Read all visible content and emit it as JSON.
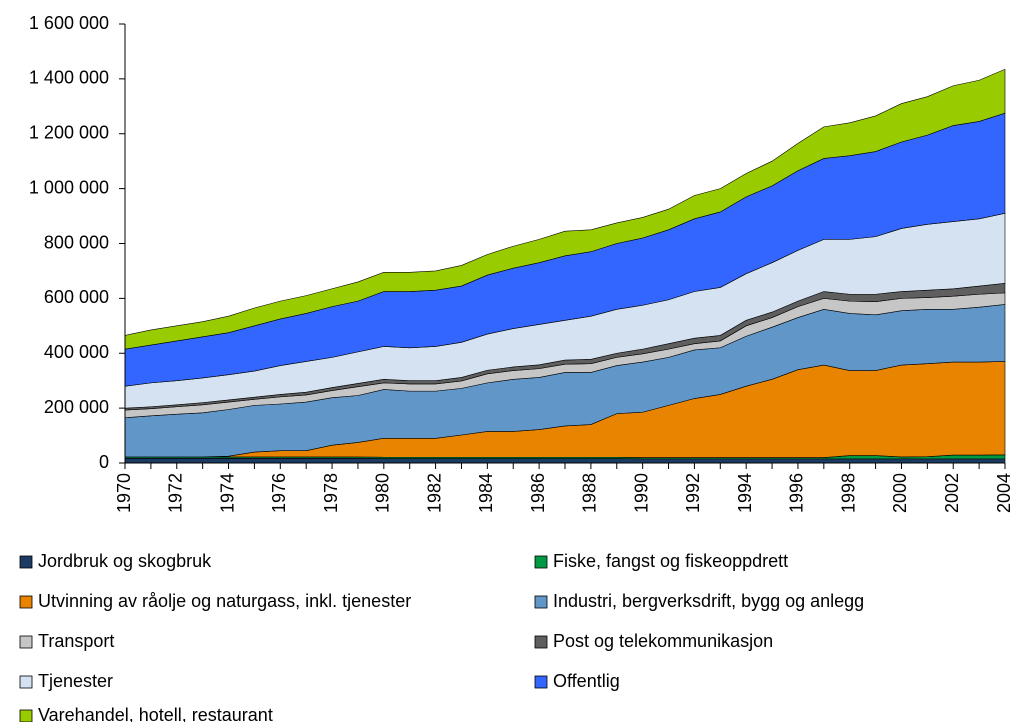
{
  "chart_data": {
    "type": "stacked_area",
    "x": [
      1970,
      1971,
      1972,
      1973,
      1974,
      1975,
      1976,
      1977,
      1978,
      1979,
      1980,
      1981,
      1982,
      1983,
      1984,
      1985,
      1986,
      1987,
      1988,
      1989,
      1990,
      1991,
      1992,
      1993,
      1994,
      1995,
      1996,
      1997,
      1998,
      1999,
      2000,
      2001,
      2002,
      2003,
      2004
    ],
    "xlim": [
      1970,
      2004
    ],
    "xticks": [
      1970,
      1972,
      1974,
      1976,
      1978,
      1980,
      1982,
      1984,
      1986,
      1988,
      1990,
      1992,
      1994,
      1996,
      1998,
      2000,
      2002,
      2004
    ],
    "ylim": [
      0,
      1600000
    ],
    "yticks": [
      0,
      {
        "value": 200000,
        "label": "200 000"
      },
      {
        "value": 400000,
        "label": "400 000"
      },
      {
        "value": 600000,
        "label": "600 000"
      },
      {
        "value": 800000,
        "label": "800 000"
      },
      {
        "value": 1000000,
        "label": "1 000 000"
      },
      {
        "value": 1200000,
        "label": "1 200 000"
      },
      {
        "value": 1400000,
        "label": "1 400 000"
      },
      {
        "value": 1600000,
        "label": "1 600 000"
      }
    ],
    "series": [
      {
        "name": "Jordbruk og skogbruk",
        "color": "#1c3b63",
        "values": [
          17000,
          17000,
          17000,
          17000,
          17000,
          17000,
          17000,
          17000,
          17000,
          17000,
          16000,
          16000,
          16000,
          16000,
          16000,
          16000,
          16000,
          16000,
          16000,
          16000,
          15000,
          15000,
          15000,
          15000,
          15000,
          15000,
          15000,
          15000,
          15000,
          15000,
          15000,
          15000,
          15000,
          15000,
          15000
        ]
      },
      {
        "name": "Fiske, fangst og fiskeoppdrett",
        "color": "#009a44",
        "values": [
          5000,
          5000,
          5000,
          5000,
          5000,
          5000,
          5000,
          5000,
          5000,
          5000,
          5000,
          5000,
          5000,
          5000,
          5000,
          5000,
          5000,
          5000,
          5000,
          5000,
          5000,
          5000,
          5000,
          5000,
          5000,
          5000,
          5000,
          5000,
          12000,
          12000,
          7000,
          8000,
          14000,
          14000,
          15000
        ]
      },
      {
        "name": "Utvinning av råolje og naturgass, inkl. tjenester",
        "color": "#e88400",
        "values": [
          0,
          0,
          0,
          0,
          3000,
          18000,
          23000,
          23000,
          43000,
          53000,
          69000,
          69000,
          69000,
          81000,
          94000,
          94000,
          101000,
          114000,
          119000,
          159000,
          165000,
          190000,
          215000,
          230000,
          260000,
          285000,
          320000,
          337000,
          310000,
          310000,
          335000,
          339000,
          339000,
          339000,
          340000
        ]
      },
      {
        "name": "Industri, bergverksdrift, bygg og anlegg",
        "color": "#6096c8",
        "values": [
          143000,
          150000,
          156000,
          161000,
          170000,
          170000,
          170000,
          177000,
          173000,
          171000,
          178000,
          172000,
          172000,
          170000,
          177000,
          190000,
          190000,
          195000,
          190000,
          175000,
          183000,
          175000,
          177000,
          170000,
          182000,
          190000,
          190000,
          203000,
          208000,
          203000,
          198000,
          198000,
          192000,
          200000,
          208000
        ]
      },
      {
        "name": "Transport",
        "color": "#c6c6c6",
        "values": [
          28000,
          26000,
          27000,
          29000,
          27000,
          22000,
          26000,
          26000,
          26000,
          32000,
          24000,
          26000,
          26000,
          27000,
          33000,
          32000,
          32000,
          30000,
          32000,
          30000,
          30000,
          30000,
          23000,
          25000,
          38000,
          35000,
          40000,
          40000,
          45000,
          48000,
          45000,
          43000,
          48000,
          47000,
          42000
        ]
      },
      {
        "name": "Post og telekommunikasjon",
        "color": "#5f5f5f",
        "values": [
          7000,
          7000,
          7000,
          8000,
          8000,
          8000,
          9000,
          10000,
          11000,
          12000,
          13000,
          12000,
          12000,
          13000,
          13000,
          13000,
          14000,
          15000,
          16000,
          15000,
          17000,
          20000,
          20000,
          20000,
          20000,
          20000,
          20000,
          25000,
          25000,
          27000,
          25000,
          27000,
          27000,
          30000,
          35000
        ]
      },
      {
        "name": "Tjenester",
        "color": "#d4e2f2",
        "values": [
          80000,
          87000,
          88000,
          90000,
          92000,
          95000,
          105000,
          112000,
          110000,
          115000,
          120000,
          120000,
          125000,
          128000,
          132000,
          140000,
          147000,
          145000,
          157000,
          160000,
          160000,
          160000,
          170000,
          175000,
          170000,
          180000,
          185000,
          190000,
          200000,
          210000,
          230000,
          240000,
          245000,
          245000,
          255000
        ]
      },
      {
        "name": "Offentlig",
        "color": "#3366ff",
        "values": [
          135000,
          138000,
          145000,
          150000,
          153000,
          165000,
          170000,
          175000,
          185000,
          185000,
          200000,
          205000,
          205000,
          205000,
          215000,
          220000,
          225000,
          235000,
          235000,
          240000,
          245000,
          255000,
          265000,
          275000,
          280000,
          280000,
          290000,
          295000,
          305000,
          310000,
          315000,
          325000,
          350000,
          355000,
          365000
        ]
      },
      {
        "name": "Varehandel, hotell, restaurant",
        "color": "#99cc00",
        "values": [
          50000,
          55000,
          55000,
          55000,
          60000,
          65000,
          65000,
          65000,
          65000,
          70000,
          70000,
          70000,
          70000,
          75000,
          75000,
          80000,
          85000,
          90000,
          80000,
          75000,
          75000,
          75000,
          85000,
          85000,
          85000,
          90000,
          100000,
          115000,
          120000,
          130000,
          140000,
          140000,
          145000,
          150000,
          160000
        ]
      }
    ]
  }
}
